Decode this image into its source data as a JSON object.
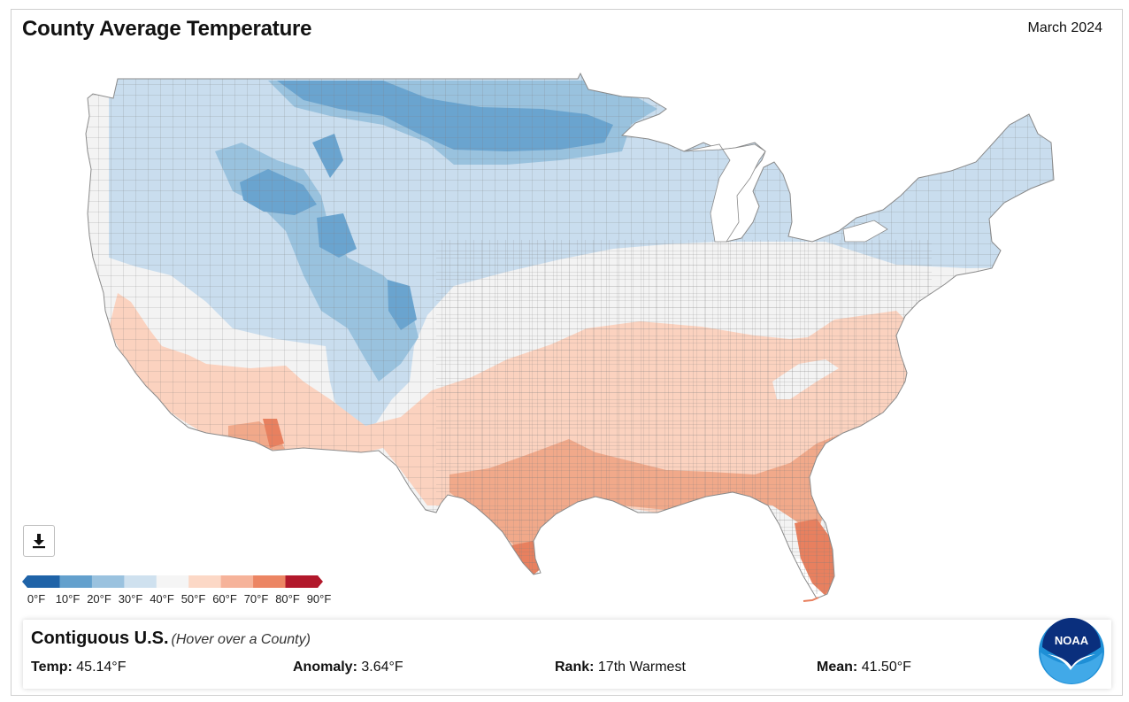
{
  "header": {
    "title": "County Average Temperature",
    "period": "March 2024"
  },
  "map": {
    "name": "Contiguous U.S. county average temperature map",
    "land_colors": {
      "very_cold": "#6aa4cf",
      "cold": "#99c2de",
      "cool": "#c9ddee",
      "mild": "#f3f3f3",
      "warm": "#fbd2bf",
      "hot": "#f1a98a",
      "very_hot": "#e8805f",
      "extreme": "#b31b2c"
    },
    "border_color": "#8a8a8a"
  },
  "legend": {
    "labels": [
      "0°F",
      "10°F",
      "20°F",
      "30°F",
      "40°F",
      "50°F",
      "60°F",
      "70°F",
      "80°F",
      "90°F"
    ],
    "colors": [
      "#1f63a8",
      "#63a0cd",
      "#9ac2df",
      "#cfe1ef",
      "#f5f5f5",
      "#fcd8c6",
      "#f6b39a",
      "#ec8563",
      "#b2182b"
    ]
  },
  "download": {
    "icon": "download-icon"
  },
  "info": {
    "region": "Contiguous U.S.",
    "hint": "(Hover over a County)",
    "temp_label": "Temp:",
    "temp_value": "45.14°F",
    "anomaly_label": "Anomaly:",
    "anomaly_value": "3.64°F",
    "rank_label": "Rank:",
    "rank_value": "17th Warmest",
    "mean_label": "Mean:",
    "mean_value": "41.50°F"
  },
  "logo": {
    "text": "NOAA",
    "icon": "noaa-logo-icon"
  }
}
